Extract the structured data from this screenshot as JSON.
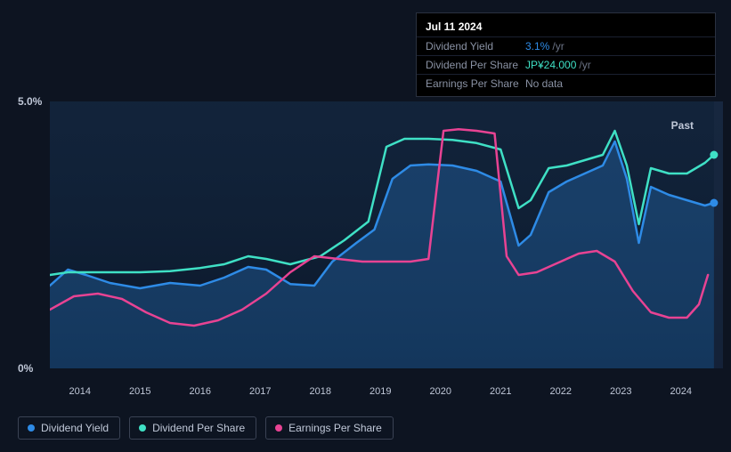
{
  "tooltip": {
    "date": "Jul 11 2024",
    "rows": [
      {
        "label": "Dividend Yield",
        "value": "3.1%",
        "unit": "/yr",
        "color": "#2e8be6"
      },
      {
        "label": "Dividend Per Share",
        "value": "JP¥24.000",
        "unit": "/yr",
        "color": "#3fe0c5"
      },
      {
        "label": "Earnings Per Share",
        "value": "No data",
        "unit": "",
        "color": "#8a92a4"
      }
    ]
  },
  "chart": {
    "type": "line",
    "background_color": "#0d1421",
    "plot_background": "linear-gradient(180deg, rgba(20,40,70,0.6) 0%, rgba(10,20,40,0.9) 100%)",
    "xlim": [
      2013.5,
      2024.7
    ],
    "ylim": [
      0,
      5
    ],
    "y_ticks": [
      {
        "v": 5,
        "label": "5.0%"
      },
      {
        "v": 0,
        "label": "0%"
      }
    ],
    "x_ticks": [
      2014,
      2015,
      2016,
      2017,
      2018,
      2019,
      2020,
      2021,
      2022,
      2023,
      2024
    ],
    "past_label": "Past",
    "end_marker_x": 2024.55,
    "series": [
      {
        "name": "Dividend Yield",
        "color": "#2e8be6",
        "line_width": 2.5,
        "fill_opacity": 0.28,
        "has_fill": true,
        "end_marker": true,
        "points": [
          [
            2013.5,
            1.55
          ],
          [
            2013.8,
            1.85
          ],
          [
            2014.1,
            1.75
          ],
          [
            2014.5,
            1.6
          ],
          [
            2015.0,
            1.5
          ],
          [
            2015.5,
            1.6
          ],
          [
            2016.0,
            1.55
          ],
          [
            2016.4,
            1.7
          ],
          [
            2016.8,
            1.9
          ],
          [
            2017.1,
            1.85
          ],
          [
            2017.5,
            1.58
          ],
          [
            2017.9,
            1.55
          ],
          [
            2018.2,
            2.0
          ],
          [
            2018.6,
            2.35
          ],
          [
            2018.9,
            2.6
          ],
          [
            2019.2,
            3.55
          ],
          [
            2019.5,
            3.8
          ],
          [
            2019.8,
            3.82
          ],
          [
            2020.2,
            3.8
          ],
          [
            2020.6,
            3.7
          ],
          [
            2021.0,
            3.5
          ],
          [
            2021.3,
            2.3
          ],
          [
            2021.5,
            2.5
          ],
          [
            2021.8,
            3.3
          ],
          [
            2022.1,
            3.5
          ],
          [
            2022.4,
            3.65
          ],
          [
            2022.7,
            3.8
          ],
          [
            2022.9,
            4.25
          ],
          [
            2023.1,
            3.55
          ],
          [
            2023.3,
            2.35
          ],
          [
            2023.5,
            3.4
          ],
          [
            2023.8,
            3.25
          ],
          [
            2024.1,
            3.15
          ],
          [
            2024.4,
            3.05
          ],
          [
            2024.55,
            3.1
          ]
        ]
      },
      {
        "name": "Dividend Per Share",
        "color": "#3fe0c5",
        "line_width": 2.5,
        "fill_opacity": 0,
        "has_fill": false,
        "end_marker": true,
        "points": [
          [
            2013.5,
            1.75
          ],
          [
            2013.8,
            1.8
          ],
          [
            2014.2,
            1.8
          ],
          [
            2014.6,
            1.8
          ],
          [
            2015.0,
            1.8
          ],
          [
            2015.5,
            1.82
          ],
          [
            2016.0,
            1.88
          ],
          [
            2016.4,
            1.95
          ],
          [
            2016.8,
            2.1
          ],
          [
            2017.1,
            2.05
          ],
          [
            2017.5,
            1.95
          ],
          [
            2018.0,
            2.1
          ],
          [
            2018.4,
            2.4
          ],
          [
            2018.8,
            2.75
          ],
          [
            2019.1,
            4.15
          ],
          [
            2019.4,
            4.3
          ],
          [
            2019.8,
            4.3
          ],
          [
            2020.2,
            4.28
          ],
          [
            2020.6,
            4.22
          ],
          [
            2021.0,
            4.1
          ],
          [
            2021.3,
            3.0
          ],
          [
            2021.5,
            3.15
          ],
          [
            2021.8,
            3.75
          ],
          [
            2022.1,
            3.8
          ],
          [
            2022.4,
            3.9
          ],
          [
            2022.7,
            4.0
          ],
          [
            2022.9,
            4.45
          ],
          [
            2023.1,
            3.8
          ],
          [
            2023.3,
            2.7
          ],
          [
            2023.5,
            3.75
          ],
          [
            2023.8,
            3.65
          ],
          [
            2024.1,
            3.65
          ],
          [
            2024.4,
            3.85
          ],
          [
            2024.55,
            4.0
          ]
        ]
      },
      {
        "name": "Earnings Per Share",
        "color": "#e84393",
        "line_width": 2.5,
        "fill_opacity": 0,
        "has_fill": false,
        "end_marker": false,
        "points": [
          [
            2013.5,
            1.1
          ],
          [
            2013.9,
            1.35
          ],
          [
            2014.3,
            1.4
          ],
          [
            2014.7,
            1.3
          ],
          [
            2015.1,
            1.05
          ],
          [
            2015.5,
            0.85
          ],
          [
            2015.9,
            0.8
          ],
          [
            2016.3,
            0.9
          ],
          [
            2016.7,
            1.1
          ],
          [
            2017.1,
            1.4
          ],
          [
            2017.5,
            1.8
          ],
          [
            2017.9,
            2.1
          ],
          [
            2018.3,
            2.05
          ],
          [
            2018.7,
            2.0
          ],
          [
            2019.1,
            2.0
          ],
          [
            2019.5,
            2.0
          ],
          [
            2019.8,
            2.05
          ],
          [
            2019.95,
            3.5
          ],
          [
            2020.05,
            4.45
          ],
          [
            2020.3,
            4.48
          ],
          [
            2020.6,
            4.45
          ],
          [
            2020.9,
            4.4
          ],
          [
            2021.1,
            2.1
          ],
          [
            2021.3,
            1.75
          ],
          [
            2021.6,
            1.8
          ],
          [
            2021.9,
            1.95
          ],
          [
            2022.3,
            2.15
          ],
          [
            2022.6,
            2.2
          ],
          [
            2022.9,
            2.0
          ],
          [
            2023.2,
            1.45
          ],
          [
            2023.5,
            1.05
          ],
          [
            2023.8,
            0.95
          ],
          [
            2024.1,
            0.95
          ],
          [
            2024.3,
            1.2
          ],
          [
            2024.45,
            1.75
          ]
        ]
      }
    ]
  },
  "legend": [
    {
      "label": "Dividend Yield",
      "color": "#2e8be6"
    },
    {
      "label": "Dividend Per Share",
      "color": "#3fe0c5"
    },
    {
      "label": "Earnings Per Share",
      "color": "#e84393"
    }
  ]
}
